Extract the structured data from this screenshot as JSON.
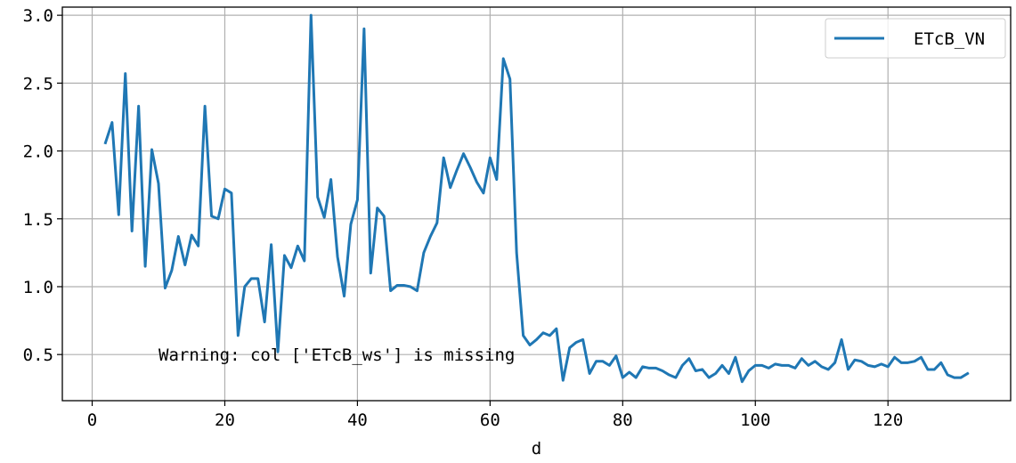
{
  "chart_data": {
    "type": "line",
    "xlabel": "d",
    "ylabel": "",
    "xlim": [
      -4.5,
      138.5
    ],
    "ylim": [
      0.16,
      3.06
    ],
    "xticks": [
      0,
      20,
      40,
      60,
      80,
      100,
      120
    ],
    "yticks": [
      0.5,
      1.0,
      1.5,
      2.0,
      2.5,
      3.0
    ],
    "xtick_labels": [
      "0",
      "20",
      "40",
      "60",
      "80",
      "100",
      "120"
    ],
    "ytick_labels": [
      "0.5",
      "1.0",
      "1.5",
      "2.0",
      "2.5",
      "3.0"
    ],
    "grid": true,
    "legend_position": "top-right",
    "annotation": "Warning: col ['ETcB_ws'] is missing",
    "series": [
      {
        "name": "ETcB_VN",
        "color": "#1f77b4",
        "x": [
          2,
          3,
          4,
          5,
          6,
          7,
          8,
          9,
          10,
          11,
          12,
          13,
          14,
          15,
          16,
          17,
          18,
          19,
          20,
          21,
          22,
          23,
          24,
          25,
          26,
          27,
          28,
          29,
          30,
          31,
          32,
          33,
          34,
          35,
          36,
          37,
          38,
          39,
          40,
          41,
          42,
          43,
          44,
          45,
          46,
          47,
          48,
          49,
          50,
          51,
          52,
          53,
          54,
          55,
          56,
          57,
          58,
          59,
          60,
          61,
          62,
          63,
          64,
          65,
          66,
          67,
          68,
          69,
          70,
          71,
          72,
          73,
          74,
          75,
          76,
          77,
          78,
          79,
          80,
          81,
          82,
          83,
          84,
          85,
          86,
          87,
          88,
          89,
          90,
          91,
          92,
          93,
          94,
          95,
          96,
          97,
          98,
          99,
          100,
          101,
          102,
          103,
          104,
          105,
          106,
          107,
          108,
          109,
          110,
          111,
          112,
          113,
          114,
          115,
          116,
          117,
          118,
          119,
          120,
          121,
          122,
          123,
          124,
          125,
          126,
          127,
          128,
          129,
          130,
          131,
          132
        ],
        "y": [
          2.06,
          2.21,
          1.53,
          2.57,
          1.41,
          2.33,
          1.15,
          2.01,
          1.76,
          0.99,
          1.12,
          1.37,
          1.16,
          1.38,
          1.3,
          2.33,
          1.52,
          1.5,
          1.72,
          1.69,
          0.64,
          1.0,
          1.06,
          1.06,
          0.74,
          1.31,
          0.52,
          1.23,
          1.14,
          1.3,
          1.19,
          3.0,
          1.66,
          1.51,
          1.79,
          1.22,
          0.93,
          1.46,
          1.64,
          2.9,
          1.1,
          1.58,
          1.52,
          0.97,
          1.01,
          1.01,
          1.0,
          0.97,
          1.25,
          1.37,
          1.47,
          1.95,
          1.73,
          1.86,
          1.98,
          1.88,
          1.77,
          1.69,
          1.95,
          1.79,
          2.68,
          2.53,
          1.25,
          0.64,
          0.57,
          0.61,
          0.66,
          0.64,
          0.69,
          0.31,
          0.55,
          0.59,
          0.61,
          0.36,
          0.45,
          0.45,
          0.42,
          0.49,
          0.33,
          0.37,
          0.33,
          0.41,
          0.4,
          0.4,
          0.38,
          0.35,
          0.33,
          0.42,
          0.47,
          0.38,
          0.39,
          0.33,
          0.36,
          0.42,
          0.36,
          0.48,
          0.3,
          0.38,
          0.42,
          0.42,
          0.4,
          0.43,
          0.42,
          0.42,
          0.4,
          0.47,
          0.42,
          0.45,
          0.41,
          0.39,
          0.44,
          0.61,
          0.39,
          0.46,
          0.45,
          0.42,
          0.41,
          0.43,
          0.41,
          0.48,
          0.44,
          0.44,
          0.45,
          0.48,
          0.39,
          0.39,
          0.44,
          0.35,
          0.33,
          0.33,
          0.36
        ]
      }
    ]
  }
}
